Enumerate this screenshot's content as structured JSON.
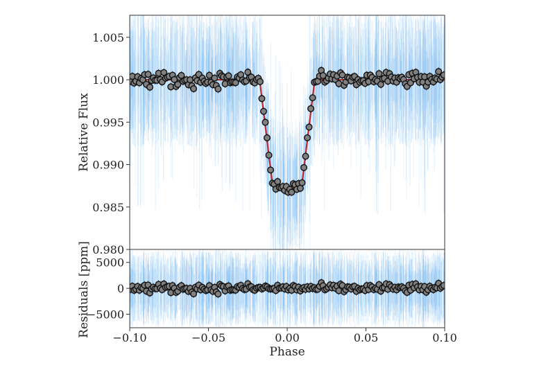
{
  "chart_data": [
    {
      "type": "scatter",
      "panel": "top",
      "ylabel": "Relative Flux",
      "xlabel": "",
      "xlim": [
        -0.1,
        0.1
      ],
      "ylim": [
        0.98,
        1.0076
      ],
      "yticks": [
        0.98,
        0.985,
        0.99,
        0.995,
        1.0,
        1.005
      ],
      "ytick_labels": [
        "0.980",
        "0.985",
        "0.990",
        "0.995",
        "1.000",
        "1.005"
      ],
      "model": {
        "name": "transit model",
        "color": "#c0272d",
        "baseline": 1.0,
        "t1": -0.0175,
        "t2": -0.0095,
        "t3": 0.0095,
        "t4": 0.0175,
        "min_flux": 0.98705,
        "flux_at_t2_t3": 0.9879
      },
      "binned_points": {
        "n": 180,
        "scatter_ppm": 450,
        "color": "#808080"
      },
      "raw_data_color": "#5aa8f0"
    },
    {
      "type": "scatter",
      "panel": "bottom",
      "ylabel": "Residuals [ppm]",
      "xlabel": "Phase",
      "xlim": [
        -0.1,
        0.1
      ],
      "ylim": [
        -7600,
        7500
      ],
      "yticks": [
        -5000,
        0,
        5000
      ],
      "ytick_labels": [
        "−5000",
        "0",
        "5000"
      ],
      "xticks": [
        -0.1,
        -0.05,
        0.0,
        0.05,
        0.1
      ],
      "xtick_labels": [
        "−0.10",
        "−0.05",
        "0.00",
        "0.05",
        "0.10"
      ]
    }
  ]
}
